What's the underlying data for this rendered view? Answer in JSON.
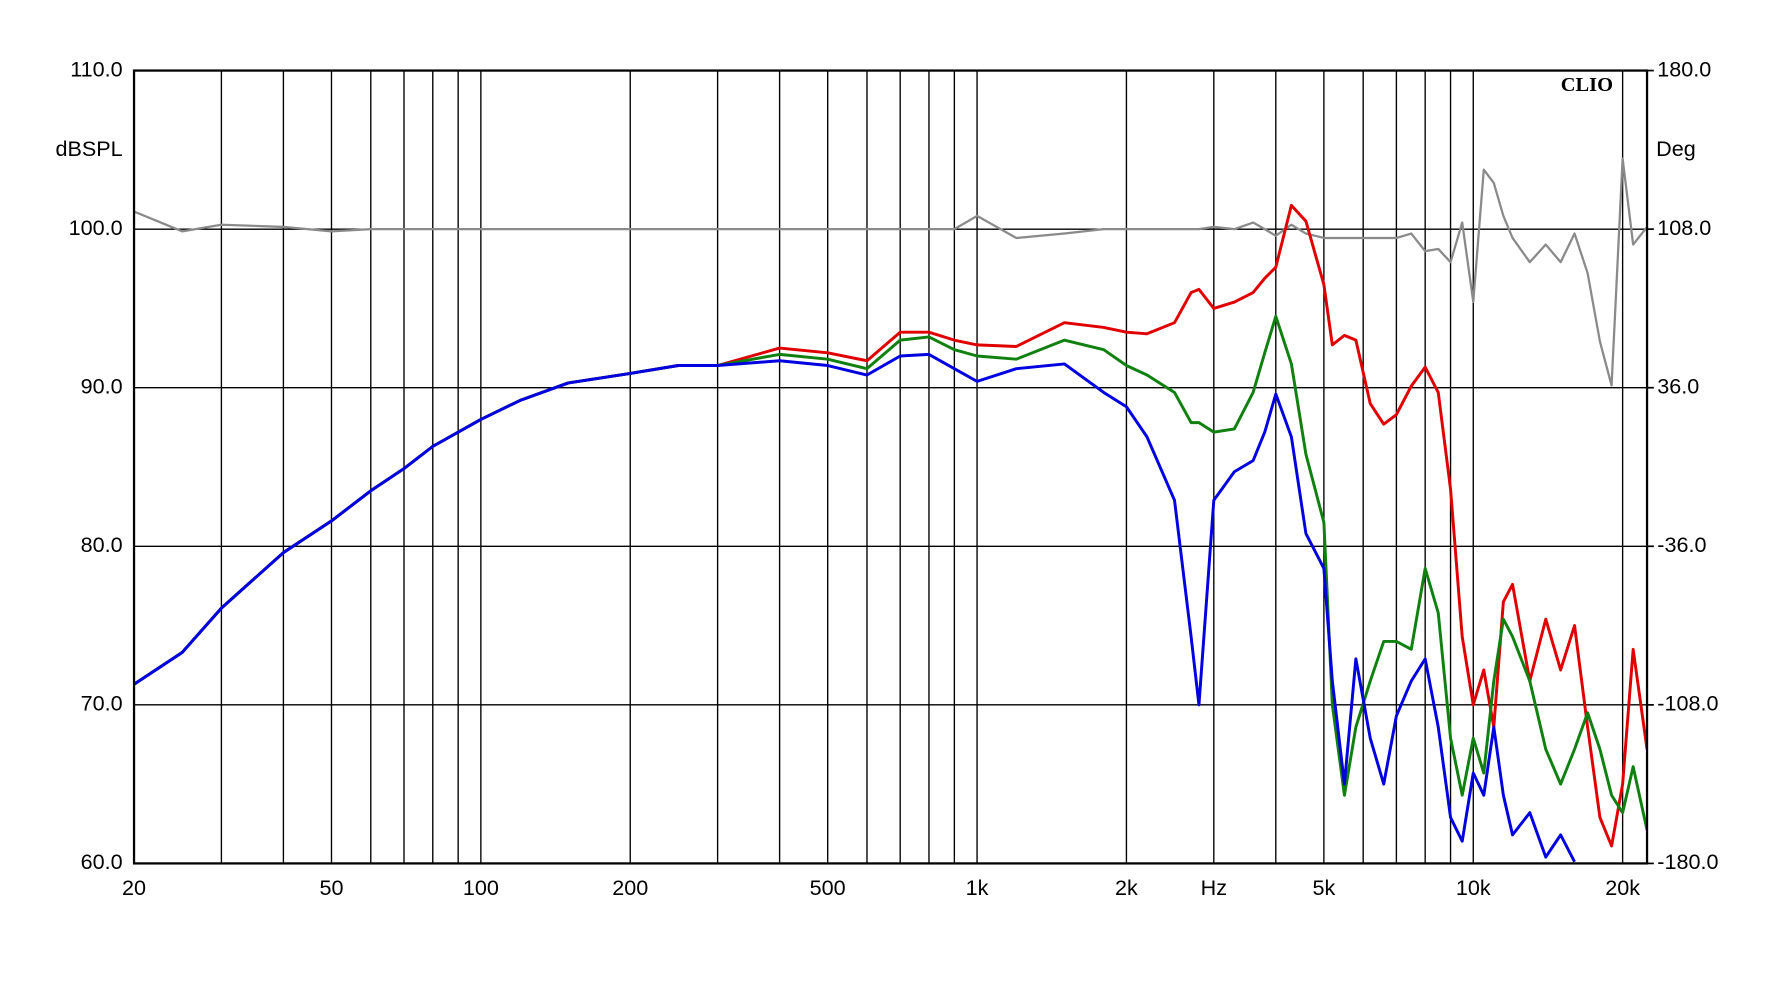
{
  "chart_data": {
    "type": "line",
    "annotation": "CLIO",
    "ylabel": "dBSPL",
    "y2label": "Deg",
    "xscale": "log",
    "grid": true,
    "xlim": [
      20,
      22400
    ],
    "xticks": [
      20,
      50,
      100,
      200,
      500,
      {
        "value": 1000,
        "label": "1k"
      },
      {
        "value": 2000,
        "label": "2k"
      },
      {
        "value": 3000,
        "label": "Hz"
      },
      {
        "value": 5000,
        "label": "5k"
      },
      {
        "value": 10000,
        "label": "10k"
      },
      {
        "value": 20000,
        "label": "20k"
      }
    ],
    "xminor": [
      30,
      40,
      60,
      70,
      80,
      90,
      300,
      400,
      600,
      700,
      800,
      900,
      4000,
      6000,
      7000,
      8000,
      9000
    ],
    "ylim": [
      60,
      110
    ],
    "yticks": [
      {
        "value": 60,
        "label": "60.0"
      },
      {
        "value": 70,
        "label": "70.0"
      },
      {
        "value": 80,
        "label": "80.0"
      },
      {
        "value": 90,
        "label": "90.0"
      },
      {
        "value": 100,
        "label": "100.0"
      },
      {
        "value": 110,
        "label": "110.0"
      }
    ],
    "y2lim": [
      -180,
      180
    ],
    "y2ticks": [
      {
        "value": -180,
        "label": "-180.0"
      },
      {
        "value": -108,
        "label": "-108.0"
      },
      {
        "value": -36,
        "label": "-36.0"
      },
      {
        "value": 36,
        "label": "36.0"
      },
      {
        "value": 108,
        "label": "108.0"
      },
      {
        "value": 180,
        "label": "180.0"
      }
    ],
    "x": [
      20,
      25,
      30,
      40,
      50,
      60,
      70,
      80,
      100,
      120,
      150,
      200,
      250,
      300,
      400,
      500,
      600,
      700,
      800,
      900,
      1000,
      1200,
      1500,
      1800,
      2000,
      2200,
      2500,
      2700,
      2800,
      3000,
      3300,
      3600,
      3800,
      4000,
      4300,
      4600,
      5000,
      5200,
      5500,
      5800,
      6200,
      6600,
      7000,
      7500,
      8000,
      8500,
      9000,
      9500,
      10000,
      10500,
      11000,
      11500,
      12000,
      13000,
      14000,
      15000,
      16000,
      17000,
      18000,
      19000,
      20000,
      21000,
      22400
    ],
    "series": [
      {
        "color": "#8a8a8a",
        "axis": "y2",
        "values": [
          116,
          107,
          110,
          109,
          107,
          108,
          108,
          108,
          108,
          108,
          108,
          108,
          108,
          108,
          108,
          108,
          108,
          108,
          108,
          108,
          114,
          104,
          106,
          108,
          108,
          108,
          108,
          108,
          108,
          109,
          108,
          111,
          108,
          105,
          110,
          106,
          104,
          104,
          104,
          104,
          104,
          104,
          104,
          106,
          98,
          99,
          93,
          111,
          75,
          135,
          129,
          114,
          104,
          93,
          101,
          93,
          106,
          88,
          57,
          37,
          140,
          101,
          109
        ]
      },
      {
        "color": "#e00000",
        "values": [
          71.3,
          73.3,
          76.1,
          79.6,
          81.6,
          83.5,
          84.9,
          86.3,
          88.0,
          89.2,
          90.3,
          90.9,
          91.4,
          91.4,
          92.5,
          92.2,
          91.7,
          93.5,
          93.5,
          93.0,
          92.7,
          92.6,
          94.1,
          93.8,
          93.5,
          93.4,
          94.1,
          96.0,
          96.2,
          95.0,
          95.4,
          96.0,
          96.9,
          97.6,
          101.5,
          100.5,
          96.5,
          92.7,
          93.3,
          93.0,
          89.0,
          87.7,
          88.3,
          90.1,
          91.3,
          89.7,
          83.6,
          74.3,
          70.0,
          72.2,
          68.6,
          76.5,
          77.6,
          71.5,
          75.4,
          72.2,
          75.0,
          68.6,
          62.9,
          61.1,
          65.0,
          73.5,
          67.2
        ]
      },
      {
        "color": "#108010",
        "values": [
          71.3,
          73.3,
          76.1,
          79.6,
          81.6,
          83.5,
          84.9,
          86.3,
          88.0,
          89.2,
          90.3,
          90.9,
          91.4,
          91.4,
          92.1,
          91.8,
          91.2,
          93.0,
          93.2,
          92.4,
          92.0,
          91.8,
          93.0,
          92.4,
          91.4,
          90.8,
          89.7,
          87.8,
          87.8,
          87.2,
          87.4,
          89.7,
          92.2,
          94.5,
          91.5,
          85.8,
          81.5,
          70.0,
          64.3,
          68.6,
          71.5,
          74.0,
          74.0,
          73.5,
          78.6,
          75.8,
          67.9,
          64.3,
          67.9,
          65.7,
          71.5,
          75.4,
          74.3,
          71.5,
          67.2,
          65.0,
          67.2,
          69.5,
          67.2,
          64.3,
          63.2,
          66.1,
          62.1
        ]
      },
      {
        "color": "#0000e0",
        "values": [
          71.3,
          73.3,
          76.1,
          79.6,
          81.6,
          83.5,
          84.9,
          86.3,
          88.0,
          89.2,
          90.3,
          90.9,
          91.4,
          91.4,
          91.7,
          91.4,
          90.8,
          92.0,
          92.1,
          91.2,
          90.4,
          91.2,
          91.5,
          89.7,
          88.8,
          86.9,
          82.9,
          74.3,
          70.0,
          82.9,
          84.7,
          85.4,
          87.2,
          89.6,
          86.9,
          80.8,
          78.6,
          71.5,
          65.0,
          72.9,
          67.9,
          65.0,
          69.3,
          71.5,
          72.9,
          68.6,
          62.9,
          61.4,
          65.7,
          64.3,
          68.6,
          64.3,
          61.8,
          63.2,
          60.4,
          61.8,
          60.1,
          null,
          null,
          null,
          null,
          null,
          null
        ]
      }
    ]
  }
}
